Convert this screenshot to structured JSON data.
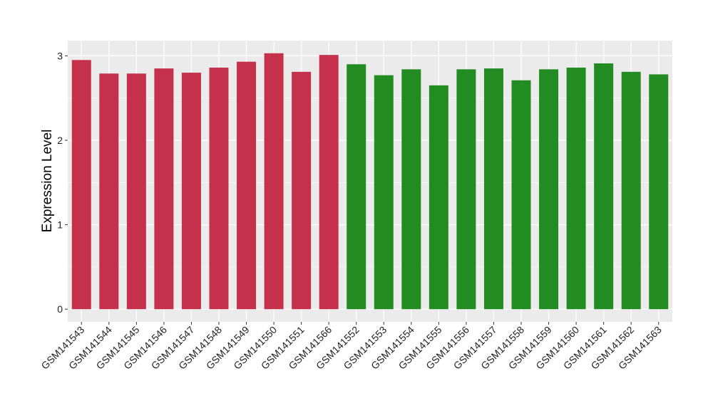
{
  "chart_data": {
    "type": "bar",
    "title": "",
    "xlabel": "",
    "ylabel": "Expression Level",
    "ylim": [
      -0.15,
      3.18
    ],
    "yticks": [
      0,
      1,
      2,
      3
    ],
    "grid": true,
    "legend": "none",
    "categories": [
      "GSM141543",
      "GSM141544",
      "GSM141545",
      "GSM141546",
      "GSM141547",
      "GSM141548",
      "GSM141549",
      "GSM141550",
      "GSM141551",
      "GSM141566",
      "GSM141552",
      "GSM141553",
      "GSM141554",
      "GSM141555",
      "GSM141556",
      "GSM141557",
      "GSM141558",
      "GSM141559",
      "GSM141560",
      "GSM141561",
      "GSM141562",
      "GSM141563"
    ],
    "values": [
      2.95,
      2.79,
      2.79,
      2.85,
      2.8,
      2.86,
      2.93,
      3.03,
      2.81,
      3.01,
      2.9,
      2.77,
      2.84,
      2.65,
      2.84,
      2.85,
      2.71,
      2.84,
      2.86,
      2.91,
      2.81,
      2.78
    ],
    "colors": [
      "#C5314A",
      "#C5314A",
      "#C5314A",
      "#C5314A",
      "#C5314A",
      "#C5314A",
      "#C5314A",
      "#C5314A",
      "#C5314A",
      "#C5314A",
      "#228B22",
      "#228B22",
      "#228B22",
      "#228B22",
      "#228B22",
      "#228B22",
      "#228B22",
      "#228B22",
      "#228B22",
      "#228B22",
      "#228B22",
      "#228B22"
    ],
    "panel_background": "#EBEBEB",
    "grid_color": "#FFFFFF"
  }
}
